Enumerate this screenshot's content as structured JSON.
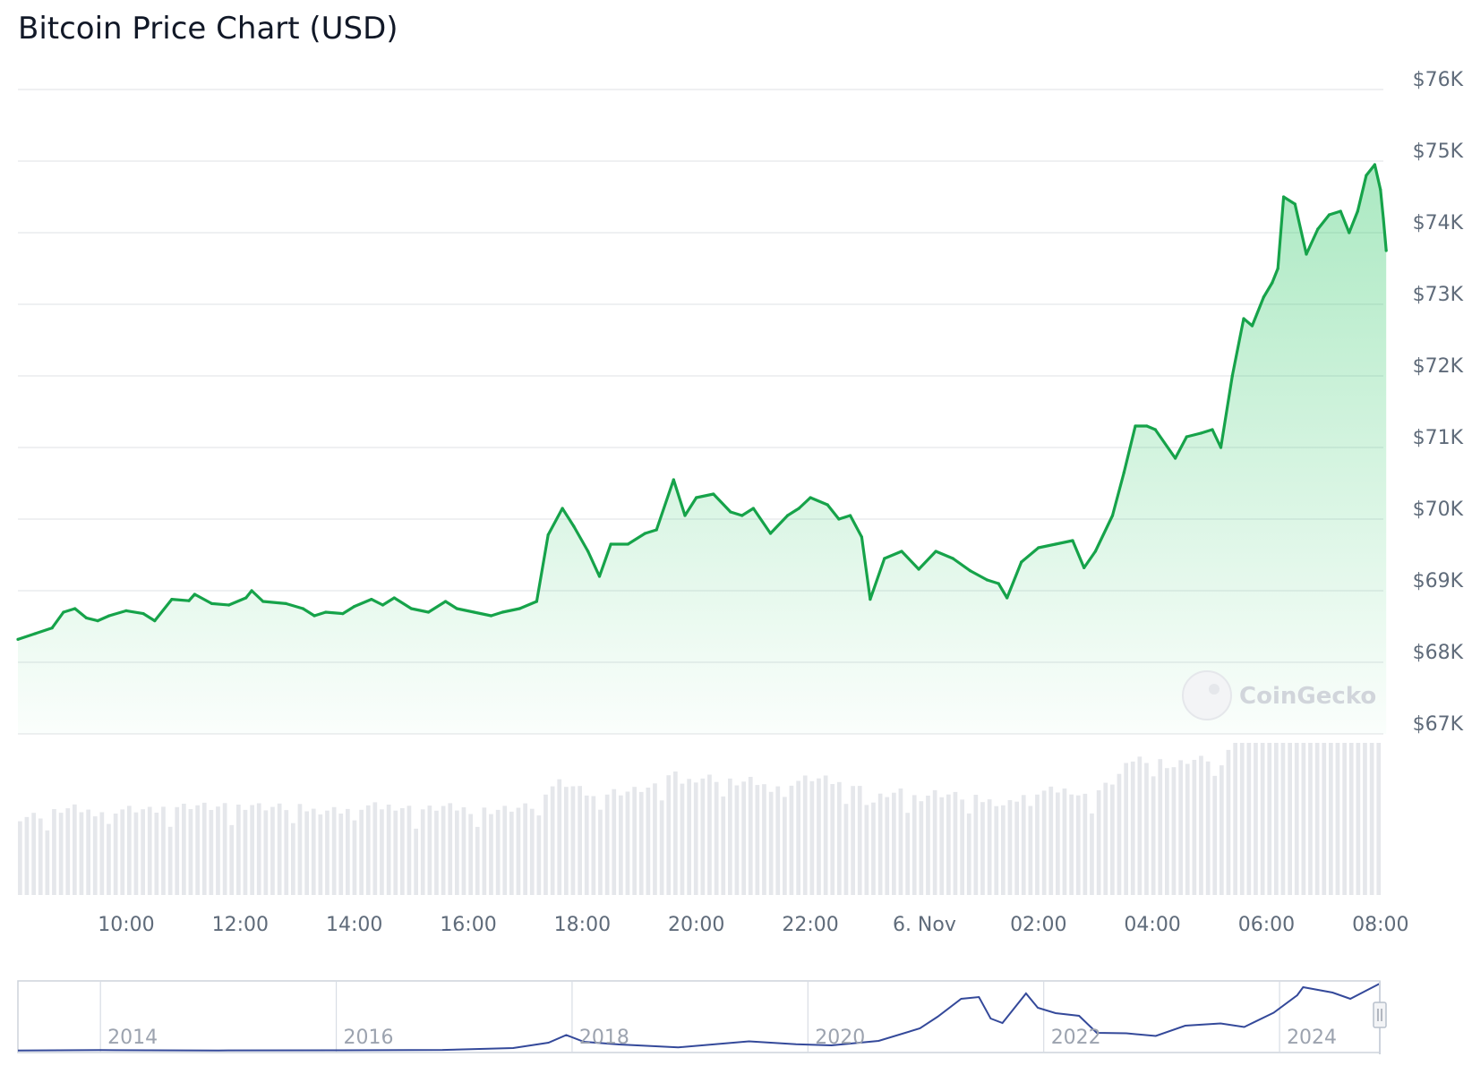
{
  "chart_data": {
    "type": "area",
    "title": "Bitcoin Price Chart (USD)",
    "currency": "USD",
    "line_color": "#16a34a",
    "fill_color": "#22c55e",
    "volume_color": "#e5e7eb",
    "navigator_color": "#34499a",
    "grid": true,
    "y_axis_position": "right",
    "ylim": [
      67000,
      76000
    ],
    "y_ticks": [
      {
        "value": 76000,
        "label": "$76K"
      },
      {
        "value": 75000,
        "label": "$75K"
      },
      {
        "value": 74000,
        "label": "$74K"
      },
      {
        "value": 73000,
        "label": "$73K"
      },
      {
        "value": 72000,
        "label": "$72K"
      },
      {
        "value": 71000,
        "label": "$71K"
      },
      {
        "value": 70000,
        "label": "$70K"
      },
      {
        "value": 69000,
        "label": "$69K"
      },
      {
        "value": 68000,
        "label": "$68K"
      },
      {
        "value": 67000,
        "label": "$67K"
      }
    ],
    "x_unit": "hours since 2024-11-05 00:00",
    "xlim": [
      8.1,
      32.05
    ],
    "x_ticks": [
      {
        "value": 10,
        "label": "10:00"
      },
      {
        "value": 12,
        "label": "12:00"
      },
      {
        "value": 14,
        "label": "14:00"
      },
      {
        "value": 16,
        "label": "16:00"
      },
      {
        "value": 18,
        "label": "18:00"
      },
      {
        "value": 20,
        "label": "20:00"
      },
      {
        "value": 22,
        "label": "22:00"
      },
      {
        "value": 24,
        "label": "6. Nov"
      },
      {
        "value": 26,
        "label": "02:00"
      },
      {
        "value": 28,
        "label": "04:00"
      },
      {
        "value": 30,
        "label": "06:00"
      },
      {
        "value": 32,
        "label": "08:00"
      }
    ],
    "series": [
      {
        "values": [
          [
            8.1,
            68320
          ],
          [
            8.4,
            68400
          ],
          [
            8.7,
            68480
          ],
          [
            8.9,
            68700
          ],
          [
            9.1,
            68750
          ],
          [
            9.3,
            68620
          ],
          [
            9.5,
            68580
          ],
          [
            9.7,
            68650
          ],
          [
            10.0,
            68720
          ],
          [
            10.3,
            68680
          ],
          [
            10.5,
            68580
          ],
          [
            10.8,
            68880
          ],
          [
            11.1,
            68860
          ],
          [
            11.2,
            68950
          ],
          [
            11.5,
            68820
          ],
          [
            11.8,
            68800
          ],
          [
            12.1,
            68900
          ],
          [
            12.2,
            69000
          ],
          [
            12.4,
            68850
          ],
          [
            12.8,
            68820
          ],
          [
            13.1,
            68750
          ],
          [
            13.3,
            68650
          ],
          [
            13.5,
            68700
          ],
          [
            13.8,
            68680
          ],
          [
            14.0,
            68780
          ],
          [
            14.3,
            68880
          ],
          [
            14.5,
            68800
          ],
          [
            14.7,
            68900
          ],
          [
            15.0,
            68750
          ],
          [
            15.3,
            68700
          ],
          [
            15.6,
            68850
          ],
          [
            15.8,
            68750
          ],
          [
            16.1,
            68700
          ],
          [
            16.4,
            68650
          ],
          [
            16.6,
            68700
          ],
          [
            16.9,
            68750
          ],
          [
            17.2,
            68850
          ],
          [
            17.4,
            69780
          ],
          [
            17.65,
            70150
          ],
          [
            17.85,
            69900
          ],
          [
            18.1,
            69550
          ],
          [
            18.3,
            69200
          ],
          [
            18.5,
            69650
          ],
          [
            18.8,
            69650
          ],
          [
            19.1,
            69800
          ],
          [
            19.3,
            69850
          ],
          [
            19.6,
            70550
          ],
          [
            19.8,
            70050
          ],
          [
            20.0,
            70300
          ],
          [
            20.3,
            70350
          ],
          [
            20.6,
            70100
          ],
          [
            20.8,
            70050
          ],
          [
            21.0,
            70150
          ],
          [
            21.3,
            69800
          ],
          [
            21.6,
            70050
          ],
          [
            21.8,
            70150
          ],
          [
            22.0,
            70300
          ],
          [
            22.3,
            70200
          ],
          [
            22.5,
            70000
          ],
          [
            22.7,
            70050
          ],
          [
            22.9,
            69750
          ],
          [
            23.05,
            68880
          ],
          [
            23.3,
            69450
          ],
          [
            23.6,
            69550
          ],
          [
            23.9,
            69300
          ],
          [
            24.2,
            69550
          ],
          [
            24.5,
            69450
          ],
          [
            24.8,
            69280
          ],
          [
            25.1,
            69150
          ],
          [
            25.3,
            69100
          ],
          [
            25.45,
            68900
          ],
          [
            25.7,
            69400
          ],
          [
            26.0,
            69600
          ],
          [
            26.3,
            69650
          ],
          [
            26.6,
            69700
          ],
          [
            26.8,
            69320
          ],
          [
            27.0,
            69550
          ],
          [
            27.3,
            70050
          ],
          [
            27.5,
            70650
          ],
          [
            27.7,
            71300
          ],
          [
            27.9,
            71300
          ],
          [
            28.05,
            71250
          ],
          [
            28.4,
            70850
          ],
          [
            28.6,
            71150
          ],
          [
            28.85,
            71200
          ],
          [
            29.05,
            71250
          ],
          [
            29.2,
            71000
          ],
          [
            29.4,
            72000
          ],
          [
            29.6,
            72800
          ],
          [
            29.75,
            72700
          ],
          [
            29.95,
            73100
          ],
          [
            30.1,
            73300
          ],
          [
            30.2,
            73500
          ],
          [
            30.3,
            74500
          ],
          [
            30.5,
            74400
          ],
          [
            30.7,
            73700
          ],
          [
            30.9,
            74050
          ],
          [
            31.1,
            74250
          ],
          [
            31.3,
            74300
          ],
          [
            31.45,
            74000
          ],
          [
            31.6,
            74300
          ],
          [
            31.75,
            74800
          ],
          [
            31.9,
            74950
          ],
          [
            32.0,
            74600
          ],
          [
            32.05,
            74200
          ],
          [
            32.1,
            73750
          ]
        ]
      }
    ],
    "navigator": {
      "x_ticks": [
        {
          "value": 2014,
          "label": "2014"
        },
        {
          "value": 2016,
          "label": "2016"
        },
        {
          "value": 2018,
          "label": "2018"
        },
        {
          "value": 2020,
          "label": "2020"
        },
        {
          "value": 2022,
          "label": "2022"
        },
        {
          "value": 2024,
          "label": "2024"
        }
      ],
      "xlim": [
        2013.3,
        2024.85
      ],
      "ylim": [
        0,
        76000
      ],
      "values": [
        [
          2013.3,
          200
        ],
        [
          2014.0,
          700
        ],
        [
          2015.0,
          300
        ],
        [
          2016.0,
          450
        ],
        [
          2016.9,
          900
        ],
        [
          2017.5,
          3000
        ],
        [
          2017.8,
          9000
        ],
        [
          2017.95,
          17500
        ],
        [
          2018.1,
          10000
        ],
        [
          2018.4,
          7000
        ],
        [
          2018.9,
          3800
        ],
        [
          2019.5,
          10500
        ],
        [
          2019.9,
          7200
        ],
        [
          2020.2,
          6000
        ],
        [
          2020.6,
          11000
        ],
        [
          2020.95,
          25000
        ],
        [
          2021.1,
          38000
        ],
        [
          2021.3,
          58000
        ],
        [
          2021.45,
          60000
        ],
        [
          2021.55,
          36000
        ],
        [
          2021.65,
          31000
        ],
        [
          2021.85,
          64000
        ],
        [
          2021.95,
          48000
        ],
        [
          2022.1,
          42000
        ],
        [
          2022.3,
          39000
        ],
        [
          2022.45,
          20000
        ],
        [
          2022.7,
          19500
        ],
        [
          2022.95,
          16500
        ],
        [
          2023.2,
          28000
        ],
        [
          2023.5,
          30500
        ],
        [
          2023.7,
          26500
        ],
        [
          2023.95,
          42500
        ],
        [
          2024.15,
          62000
        ],
        [
          2024.2,
          71000
        ],
        [
          2024.45,
          65000
        ],
        [
          2024.6,
          58000
        ],
        [
          2024.85,
          75000
        ]
      ]
    },
    "watermark": "CoinGecko"
  }
}
